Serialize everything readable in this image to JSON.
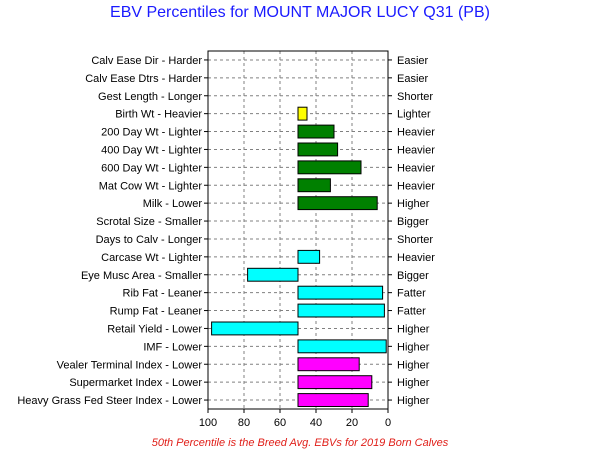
{
  "title": "EBV Percentiles for MOUNT MAJOR LUCY Q31 (PB)",
  "footnote": "50th Percentile is the Breed Avg. EBVs for 2019 Born Calves",
  "colors": {
    "yellow": "#ffff00",
    "green": "#008000",
    "cyan": "#00ffff",
    "magenta": "#ff00ff"
  },
  "chart_data": {
    "type": "bar",
    "orientation": "horizontal",
    "xlim": [
      100,
      0
    ],
    "x_ticks": [
      "100",
      "80",
      "60",
      "40",
      "20",
      "0"
    ],
    "grid": true,
    "baseline": 50,
    "rows": [
      {
        "left_label": "Calv Ease Dir - Harder",
        "right_label": "Easier",
        "value": null,
        "color": null
      },
      {
        "left_label": "Calv Ease Dtrs - Harder",
        "right_label": "Easier",
        "value": null,
        "color": null
      },
      {
        "left_label": "Gest Length - Longer",
        "right_label": "Shorter",
        "value": null,
        "color": null
      },
      {
        "left_label": "Birth Wt - Heavier",
        "right_label": "Lighter",
        "value": 45,
        "color": "yellow"
      },
      {
        "left_label": "200 Day Wt - Lighter",
        "right_label": "Heavier",
        "value": 30,
        "color": "green"
      },
      {
        "left_label": "400 Day Wt - Lighter",
        "right_label": "Heavier",
        "value": 28,
        "color": "green"
      },
      {
        "left_label": "600 Day Wt - Lighter",
        "right_label": "Heavier",
        "value": 15,
        "color": "green"
      },
      {
        "left_label": "Mat Cow Wt - Lighter",
        "right_label": "Heavier",
        "value": 32,
        "color": "green"
      },
      {
        "left_label": "Milk - Lower",
        "right_label": "Higher",
        "value": 6,
        "color": "green"
      },
      {
        "left_label": "Scrotal Size - Smaller",
        "right_label": "Bigger",
        "value": null,
        "color": null
      },
      {
        "left_label": "Days to Calv - Longer",
        "right_label": "Shorter",
        "value": null,
        "color": null
      },
      {
        "left_label": "Carcase Wt - Lighter",
        "right_label": "Heavier",
        "value": 38,
        "color": "cyan"
      },
      {
        "left_label": "Eye Musc Area - Smaller",
        "right_label": "Bigger",
        "value": 78,
        "color": "cyan"
      },
      {
        "left_label": "Rib Fat - Leaner",
        "right_label": "Fatter",
        "value": 3,
        "color": "cyan"
      },
      {
        "left_label": "Rump Fat - Leaner",
        "right_label": "Fatter",
        "value": 2,
        "color": "cyan"
      },
      {
        "left_label": "Retail Yield - Lower",
        "right_label": "Higher",
        "value": 98,
        "color": "cyan"
      },
      {
        "left_label": "IMF - Lower",
        "right_label": "Higher",
        "value": 1,
        "color": "cyan"
      },
      {
        "left_label": "Vealer Terminal Index - Lower",
        "right_label": "Higher",
        "value": 16,
        "color": "magenta"
      },
      {
        "left_label": "Supermarket Index - Lower",
        "right_label": "Higher",
        "value": 9,
        "color": "magenta"
      },
      {
        "left_label": "Heavy Grass Fed Steer Index - Lower",
        "right_label": "Higher",
        "value": 11,
        "color": "magenta"
      }
    ]
  }
}
